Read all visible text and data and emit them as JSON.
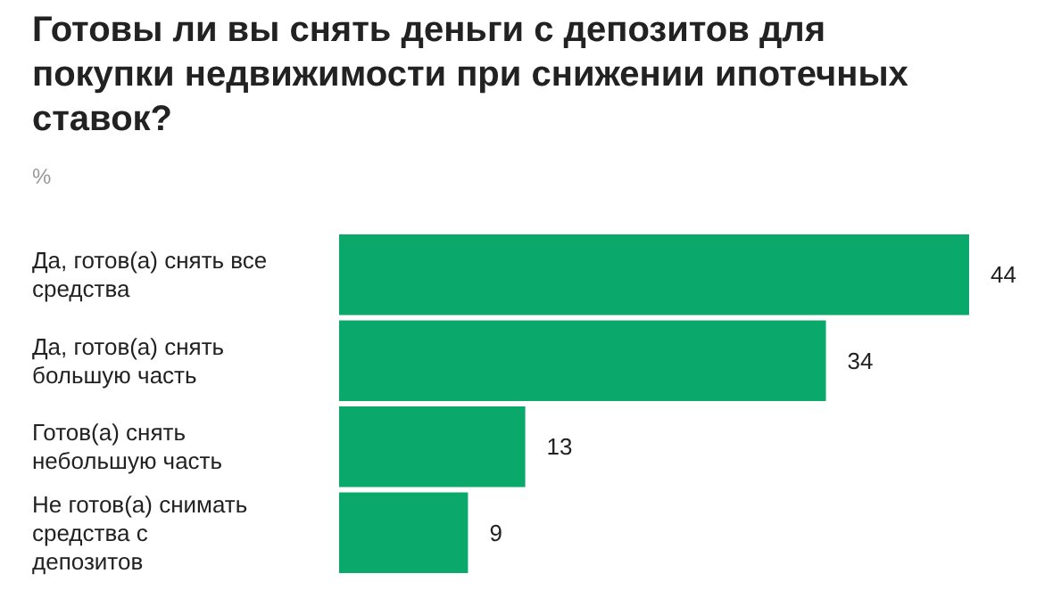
{
  "chart_data": {
    "type": "bar",
    "orientation": "horizontal",
    "title": "Готовы ли вы снять деньги с депозитов для покупки недвижимости при снижении ипотечных ставок?",
    "subtitle": "%",
    "categories": [
      "Да, готов(а) снять все средства",
      "Да, готов(а) снять большую часть",
      "Готов(а) снять небольшую часть",
      "Не готов(а) снимать средства с депозитов"
    ],
    "values": [
      44,
      34,
      13,
      9
    ],
    "color": "#0aa86b",
    "data_labels": true,
    "grid": false
  }
}
